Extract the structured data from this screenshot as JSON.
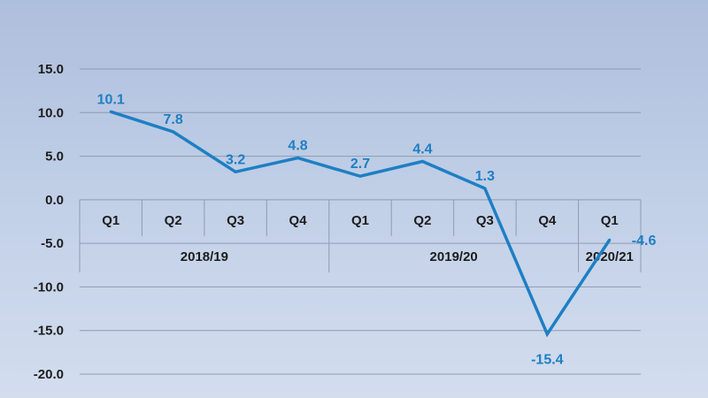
{
  "chart_data": {
    "type": "line",
    "categories": [
      "Q1",
      "Q2",
      "Q3",
      "Q4",
      "Q1",
      "Q2",
      "Q3",
      "Q4",
      "Q1"
    ],
    "periods": [
      {
        "label": "2018/19",
        "span": 4
      },
      {
        "label": "2019/20",
        "span": 4
      },
      {
        "label": "2020/21",
        "span": 1
      }
    ],
    "values": [
      10.1,
      7.8,
      3.2,
      4.8,
      2.7,
      4.4,
      1.3,
      -15.4,
      -4.6
    ],
    "data_labels": [
      "10.1",
      "7.8",
      "3.2",
      "4.8",
      "2.7",
      "4.4",
      "1.3",
      "-15.4",
      "-4.6"
    ],
    "y_ticks": [
      "15.0",
      "10.0",
      "5.0",
      "0.0",
      "-5.0",
      "-10.0",
      "-15.0",
      "-20.0"
    ],
    "ylim": [
      -20,
      15
    ],
    "title": "",
    "xlabel": "",
    "ylabel": "",
    "grid": true,
    "legend": "none",
    "colors": {
      "line": "#1e7fc4",
      "grid": "#8e9bb0",
      "text": "#1c1c1c"
    }
  }
}
